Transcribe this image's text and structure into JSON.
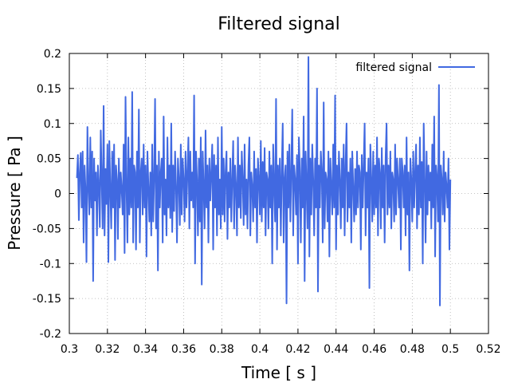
{
  "chart_data": {
    "type": "line",
    "title": "Filtered signal",
    "xlabel": "Time [ s ]",
    "ylabel": "Pressure [ Pa ]",
    "xlim": [
      0.3,
      0.52
    ],
    "ylim": [
      -0.2,
      0.2
    ],
    "xticks": [
      "0.3",
      "0.32",
      "0.34",
      "0.36",
      "0.38",
      "0.4",
      "0.42",
      "0.44",
      "0.46",
      "0.48",
      "0.5",
      "0.52"
    ],
    "yticks": [
      "-0.2",
      "-0.15",
      "-0.1",
      "-0.05",
      "0",
      "0.05",
      "0.1",
      "0.15",
      "0.2"
    ],
    "grid": true,
    "legend_position": "top-right",
    "series": [
      {
        "name": "filtered signal",
        "color": "#4169e1",
        "x": [
          0.304,
          0.3045,
          0.305,
          0.3055,
          0.306,
          0.3065,
          0.307,
          0.3075,
          0.308,
          0.3085,
          0.309,
          0.3095,
          0.31,
          0.3105,
          0.311,
          0.3115,
          0.312,
          0.3125,
          0.313,
          0.3135,
          0.314,
          0.3145,
          0.315,
          0.3155,
          0.316,
          0.3165,
          0.317,
          0.3175,
          0.318,
          0.3185,
          0.319,
          0.3195,
          0.32,
          0.3205,
          0.321,
          0.3215,
          0.322,
          0.3225,
          0.323,
          0.3235,
          0.324,
          0.3245,
          0.325,
          0.3255,
          0.326,
          0.3265,
          0.327,
          0.3275,
          0.328,
          0.3285,
          0.329,
          0.3295,
          0.33,
          0.3305,
          0.331,
          0.3315,
          0.332,
          0.3325,
          0.333,
          0.3335,
          0.334,
          0.3345,
          0.335,
          0.3355,
          0.336,
          0.3365,
          0.337,
          0.3375,
          0.338,
          0.3385,
          0.339,
          0.3395,
          0.34,
          0.3405,
          0.341,
          0.3415,
          0.342,
          0.3425,
          0.343,
          0.3435,
          0.344,
          0.3445,
          0.345,
          0.3455,
          0.346,
          0.3465,
          0.347,
          0.3475,
          0.348,
          0.3485,
          0.349,
          0.3495,
          0.35,
          0.3505,
          0.351,
          0.3515,
          0.352,
          0.3525,
          0.353,
          0.3535,
          0.354,
          0.3545,
          0.355,
          0.3555,
          0.356,
          0.3565,
          0.357,
          0.3575,
          0.358,
          0.3585,
          0.359,
          0.3595,
          0.36,
          0.3605,
          0.361,
          0.3615,
          0.362,
          0.3625,
          0.363,
          0.3635,
          0.364,
          0.3645,
          0.365,
          0.3655,
          0.366,
          0.3665,
          0.367,
          0.3675,
          0.368,
          0.3685,
          0.369,
          0.3695,
          0.37,
          0.3705,
          0.371,
          0.3715,
          0.372,
          0.3725,
          0.373,
          0.3735,
          0.374,
          0.3745,
          0.375,
          0.3755,
          0.376,
          0.3765,
          0.377,
          0.3775,
          0.378,
          0.3785,
          0.379,
          0.3795,
          0.38,
          0.3805,
          0.381,
          0.3815,
          0.382,
          0.3825,
          0.383,
          0.3835,
          0.384,
          0.3845,
          0.385,
          0.3855,
          0.386,
          0.3865,
          0.387,
          0.3875,
          0.388,
          0.3885,
          0.389,
          0.3895,
          0.39,
          0.3905,
          0.391,
          0.3915,
          0.392,
          0.3925,
          0.393,
          0.3935,
          0.394,
          0.3945,
          0.395,
          0.3955,
          0.396,
          0.3965,
          0.397,
          0.3975,
          0.398,
          0.3985,
          0.399,
          0.3995,
          0.4,
          0.4005,
          0.401,
          0.4015,
          0.402,
          0.4025,
          0.403,
          0.4035,
          0.404,
          0.4045,
          0.405,
          0.4055,
          0.406,
          0.4065,
          0.407,
          0.4075,
          0.408,
          0.4085,
          0.409,
          0.4095,
          0.41,
          0.4105,
          0.411,
          0.4115,
          0.412,
          0.4125,
          0.413,
          0.4135,
          0.414,
          0.4145,
          0.415,
          0.4155,
          0.416,
          0.4165,
          0.417,
          0.4175,
          0.418,
          0.4185,
          0.419,
          0.4195,
          0.42,
          0.4205,
          0.421,
          0.4215,
          0.422,
          0.4225,
          0.423,
          0.4235,
          0.424,
          0.4245,
          0.425,
          0.4255,
          0.426,
          0.4265,
          0.427,
          0.4275,
          0.428,
          0.4285,
          0.429,
          0.4295,
          0.43,
          0.4305,
          0.431,
          0.4315,
          0.432,
          0.4325,
          0.433,
          0.4335,
          0.434,
          0.4345,
          0.435,
          0.4355,
          0.436,
          0.4365,
          0.437,
          0.4375,
          0.438,
          0.4385,
          0.439,
          0.4395,
          0.44,
          0.4405,
          0.441,
          0.4415,
          0.442,
          0.4425,
          0.443,
          0.4435,
          0.444,
          0.4445,
          0.445,
          0.4455,
          0.446,
          0.4465,
          0.447,
          0.4475,
          0.448,
          0.4485,
          0.449,
          0.4495,
          0.45,
          0.4505,
          0.451,
          0.4515,
          0.452,
          0.4525,
          0.453,
          0.4535,
          0.454,
          0.4545,
          0.455,
          0.4555,
          0.456,
          0.4565,
          0.457,
          0.4575,
          0.458,
          0.4585,
          0.459,
          0.4595,
          0.46,
          0.4605,
          0.461,
          0.4615,
          0.462,
          0.4625,
          0.463,
          0.4635,
          0.464,
          0.4645,
          0.465,
          0.4655,
          0.466,
          0.4665,
          0.467,
          0.4675,
          0.468,
          0.4685,
          0.469,
          0.4695,
          0.47,
          0.4705,
          0.471,
          0.4715,
          0.472,
          0.4725,
          0.473,
          0.4735,
          0.474,
          0.4745,
          0.475,
          0.4755,
          0.476,
          0.4765,
          0.477,
          0.4775,
          0.478,
          0.4785,
          0.479,
          0.4795,
          0.48,
          0.4805,
          0.481,
          0.4815,
          0.482,
          0.4825,
          0.483,
          0.4835,
          0.484,
          0.4845,
          0.485,
          0.4855,
          0.486,
          0.4865,
          0.487,
          0.4875,
          0.488,
          0.4885,
          0.489,
          0.4895,
          0.49,
          0.4905,
          0.491,
          0.4915,
          0.492,
          0.4925,
          0.493,
          0.4935,
          0.494,
          0.4945,
          0.495,
          0.4955,
          0.496,
          0.4965,
          0.497,
          0.4975,
          0.498,
          0.4985,
          0.499,
          0.4995,
          0.5
        ],
        "y": [
          0.022,
          0.055,
          -0.038,
          0.03,
          0.058,
          -0.02,
          0.06,
          -0.07,
          0.04,
          0.005,
          -0.098,
          0.095,
          0.01,
          -0.03,
          0.08,
          -0.02,
          0.06,
          -0.125,
          0.05,
          -0.01,
          0.03,
          -0.06,
          0.04,
          0.012,
          -0.048,
          0.09,
          0.02,
          -0.05,
          0.125,
          -0.06,
          0.035,
          -0.015,
          0.07,
          -0.098,
          0.075,
          0.008,
          -0.05,
          0.06,
          -0.02,
          0.07,
          -0.095,
          0.04,
          0.02,
          -0.065,
          0.05,
          -0.02,
          0.03,
          0.005,
          -0.03,
          0.07,
          -0.085,
          0.138,
          0.01,
          -0.07,
          0.08,
          -0.03,
          0.05,
          -0.02,
          0.145,
          -0.07,
          0.04,
          0.03,
          -0.08,
          0.06,
          -0.02,
          0.12,
          -0.07,
          0.03,
          0.05,
          -0.03,
          0.07,
          -0.02,
          0.04,
          -0.09,
          0.06,
          0.01,
          -0.04,
          0.03,
          -0.06,
          0.07,
          -0.04,
          0.02,
          0.135,
          -0.05,
          0.04,
          -0.11,
          0.06,
          -0.02,
          0.03,
          0.05,
          -0.07,
          0.11,
          -0.03,
          0.02,
          -0.06,
          0.08,
          -0.02,
          0.04,
          -0.035,
          0.1,
          -0.055,
          0.04,
          -0.025,
          0.06,
          0.01,
          -0.07,
          0.05,
          0.02,
          -0.045,
          0.07,
          -0.03,
          0.05,
          0.02,
          -0.04,
          0.06,
          -0.02,
          0.03,
          0.08,
          -0.05,
          0.06,
          -0.01,
          0.03,
          -0.02,
          0.14,
          -0.1,
          0.06,
          0.02,
          -0.06,
          0.05,
          -0.04,
          0.08,
          -0.13,
          0.06,
          0.01,
          -0.05,
          0.09,
          -0.02,
          0.04,
          -0.07,
          0.05,
          -0.01,
          0.03,
          0.07,
          -0.08,
          0.055,
          -0.02,
          0.04,
          -0.06,
          0.08,
          -0.03,
          0.02,
          -0.05,
          0.095,
          -0.03,
          0.05,
          -0.04,
          0.03,
          0.06,
          -0.065,
          0.03,
          -0.02,
          0.05,
          -0.04,
          0.02,
          0.075,
          -0.05,
          0.04,
          0.01,
          -0.06,
          0.08,
          -0.02,
          0.04,
          -0.035,
          0.06,
          0.02,
          -0.045,
          0.07,
          -0.03,
          0.02,
          -0.05,
          0.04,
          0.08,
          -0.06,
          0.03,
          0.01,
          -0.04,
          0.06,
          -0.02,
          0.035,
          -0.07,
          0.05,
          0.02,
          -0.03,
          0.075,
          -0.04,
          0.045,
          -0.02,
          0.065,
          -0.06,
          0.03,
          0.02,
          -0.05,
          0.06,
          -0.02,
          0.04,
          -0.1,
          0.07,
          0.01,
          -0.04,
          0.135,
          -0.08,
          0.04,
          -0.02,
          0.05,
          -0.06,
          0.03,
          0.1,
          -0.07,
          0.02,
          0.04,
          -0.157,
          0.06,
          -0.02,
          0.07,
          -0.04,
          0.03,
          0.12,
          -0.06,
          0.04,
          0.02,
          -0.03,
          0.055,
          -0.1,
          0.08,
          0.03,
          -0.07,
          0.05,
          -0.02,
          0.11,
          -0.125,
          0.06,
          0.01,
          -0.05,
          0.195,
          -0.09,
          0.05,
          -0.03,
          0.07,
          0.02,
          -0.06,
          0.05,
          -0.02,
          0.15,
          -0.14,
          0.04,
          -0.02,
          0.06,
          0.03,
          -0.07,
          0.13,
          -0.05,
          0.03,
          0.02,
          -0.04,
          0.06,
          -0.09,
          0.05,
          0.01,
          -0.03,
          0.07,
          -0.02,
          0.14,
          -0.08,
          0.04,
          -0.03,
          0.06,
          0.02,
          -0.05,
          0.05,
          -0.02,
          0.07,
          -0.06,
          0.04,
          0.1,
          -0.04,
          0.03,
          -0.02,
          0.05,
          -0.07,
          0.06,
          0.01,
          -0.04,
          0.035,
          -0.03,
          0.06,
          -0.02,
          0.04,
          0.03,
          -0.08,
          0.055,
          -0.02,
          0.04,
          0.1,
          -0.06,
          0.03,
          -0.02,
          0.05,
          -0.135,
          0.07,
          0.02,
          -0.04,
          0.06,
          -0.03,
          0.04,
          -0.02,
          0.08,
          -0.06,
          0.05,
          0.03,
          -0.05,
          0.065,
          -0.02,
          0.04,
          -0.07,
          0.05,
          0.1,
          -0.03,
          0.04,
          -0.02,
          0.06,
          -0.05,
          0.03,
          0.02,
          -0.04,
          0.07,
          -0.03,
          0.05,
          0.02,
          -0.02,
          0.05,
          -0.08,
          0.05,
          0.03,
          -0.02,
          0.04,
          -0.06,
          0.08,
          -0.03,
          0.03,
          -0.11,
          0.05,
          0.02,
          -0.04,
          0.06,
          -0.02,
          0.03,
          0.07,
          -0.05,
          0.04,
          -0.03,
          0.08,
          -0.02,
          0.045,
          -0.1,
          0.1,
          0.02,
          -0.07,
          0.06,
          -0.03,
          0.04,
          -0.01,
          0.03,
          -0.05,
          0.07,
          -0.02,
          0.11,
          -0.09,
          0.04,
          0.02,
          -0.04,
          0.155,
          -0.16,
          0.04,
          0.02,
          -0.03,
          0.06,
          -0.04,
          0.03,
          0.01,
          -0.02,
          0.05,
          -0.08,
          0.02
        ]
      }
    ]
  }
}
